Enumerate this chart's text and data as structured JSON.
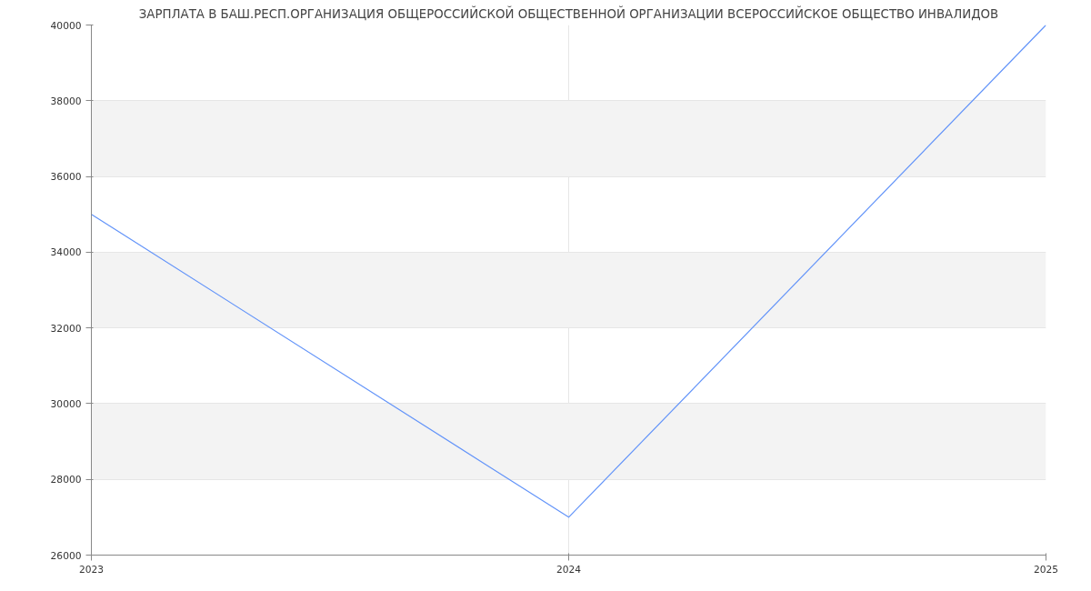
{
  "chart_data": {
    "type": "line",
    "title": "ЗАРПЛАТА В БАШ.РЕСП.ОРГАНИЗАЦИЯ ОБЩЕРОССИЙСКОЙ ОБЩЕСТВЕННОЙ ОРГАНИЗАЦИИ ВСЕРОССИЙСКОЕ ОБЩЕСТВО ИНВАЛИДОВ",
    "x": [
      "2023",
      "2024",
      "2025"
    ],
    "series": [
      {
        "color": "#6394f9",
        "values": [
          35000,
          27000,
          40000
        ]
      }
    ],
    "xlim": [
      "2023",
      "2025"
    ],
    "xticks": [
      "2023",
      "2024",
      "2025"
    ],
    "ylim": [
      26000,
      40000
    ],
    "yticks": [
      26000,
      28000,
      30000,
      32000,
      34000,
      36000,
      38000,
      40000
    ],
    "grid": true,
    "marker": "none",
    "line_style": "solid"
  }
}
